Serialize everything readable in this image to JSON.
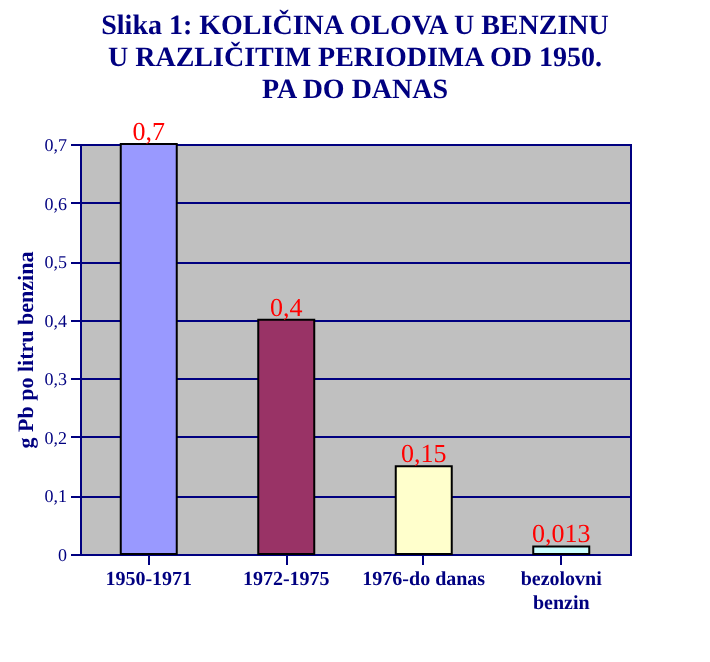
{
  "chart_data": {
    "type": "bar",
    "title": [
      "Slika 1: KOLIČINA OLOVA U BENZINU",
      "U RAZLIČITIM PERIODIMA OD 1950.",
      "PA DO DANAS"
    ],
    "ylabel": "g Pb po litru benzina",
    "categories": [
      "1950-1971",
      "1972-1975",
      "1976-do danas",
      "bezolovni\nbenzin"
    ],
    "values": [
      0.7,
      0.4,
      0.15,
      0.013
    ],
    "colors": [
      "#9999ff",
      "#993366",
      "#ffffcc",
      "#ccffff"
    ],
    "value_labels": [
      "0,7",
      "0,4",
      "0,15",
      "0,013"
    ],
    "ylim": [
      0,
      0.7
    ],
    "yticks": [
      0,
      {
        "value": 0.1,
        "label": "0,1"
      },
      {
        "value": 0.2,
        "label": "0,2"
      },
      {
        "value": 0.3,
        "label": "0,3"
      },
      {
        "value": 0.4,
        "label": "0,4"
      },
      {
        "value": 0.5,
        "label": "0,5"
      },
      {
        "value": 0.6,
        "label": "0,6"
      },
      {
        "value": 0.7,
        "label": "0,7"
      }
    ],
    "grid": "y"
  }
}
